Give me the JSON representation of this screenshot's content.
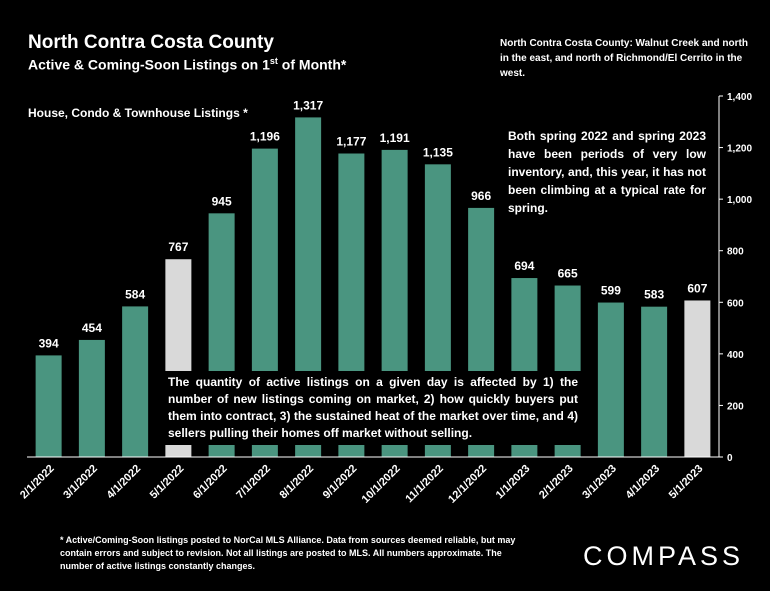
{
  "title": "North Contra Costa County",
  "subtitle_main": "Active & Coming-Soon Listings on 1",
  "subtitle_sup": "st",
  "subtitle_end": " of Month*",
  "note_top": "North Contra Costa County: Walnut Creek and north in the east, and north of Richmond/El Cerrito in the west.",
  "series_label": "House, Condo & Townhouse Listings *",
  "callout_right": "Both spring 2022 and spring 2023 have been periods of very low inventory, and, this year, it has not been climbing at a typical rate for spring.",
  "callout_box": "The quantity of active listings on a given day is affected by 1) the number of new listings coming on market, 2) how quickly buyers put them into contract, 3) the sustained heat of the market over time, and 4) sellers pulling their homes off market without selling.",
  "footnote": "* Active/Coming-Soon listings posted to NorCal MLS Alliance.  Data from sources deemed reliable, but may contain errors and subject to revision.  Not all listings are posted to MLS. All numbers approximate. The number of active listings constantly changes.",
  "logo": "COMPASS",
  "colors": {
    "bar": "#4a9580",
    "highlight": "#d9d9d9",
    "background": "#000000"
  },
  "chart_data": {
    "type": "bar",
    "categories": [
      "2/1/2022",
      "3/1/2022",
      "4/1/2022",
      "5/1/2022",
      "6/1/2022",
      "7/1/2022",
      "8/1/2022",
      "9/1/2022",
      "10/1/2022",
      "11/1/2022",
      "12/1/2022",
      "1/1/2023",
      "2/1/2023",
      "3/1/2023",
      "4/1/2023",
      "5/1/2023"
    ],
    "values": [
      394,
      454,
      584,
      767,
      945,
      1196,
      1317,
      1177,
      1191,
      1135,
      966,
      694,
      665,
      599,
      583,
      607
    ],
    "value_labels": [
      "394",
      "454",
      "584",
      "767",
      "945",
      "1,196",
      "1,317",
      "1,177",
      "1,191",
      "1,135",
      "966",
      "694",
      "665",
      "599",
      "583",
      "607"
    ],
    "highlighted": [
      "5/1/2022",
      "5/1/2023"
    ],
    "ylim": [
      0,
      1400
    ],
    "yticks": [
      0,
      200,
      400,
      600,
      800,
      1000,
      1200,
      1400
    ],
    "ytick_labels": [
      "0",
      "200",
      "400",
      "600",
      "800",
      "1,000",
      "1,200",
      "1,400"
    ],
    "y_axis_side": "right",
    "grid": false,
    "title": "North Contra Costa County",
    "xlabel": "",
    "ylabel": ""
  }
}
